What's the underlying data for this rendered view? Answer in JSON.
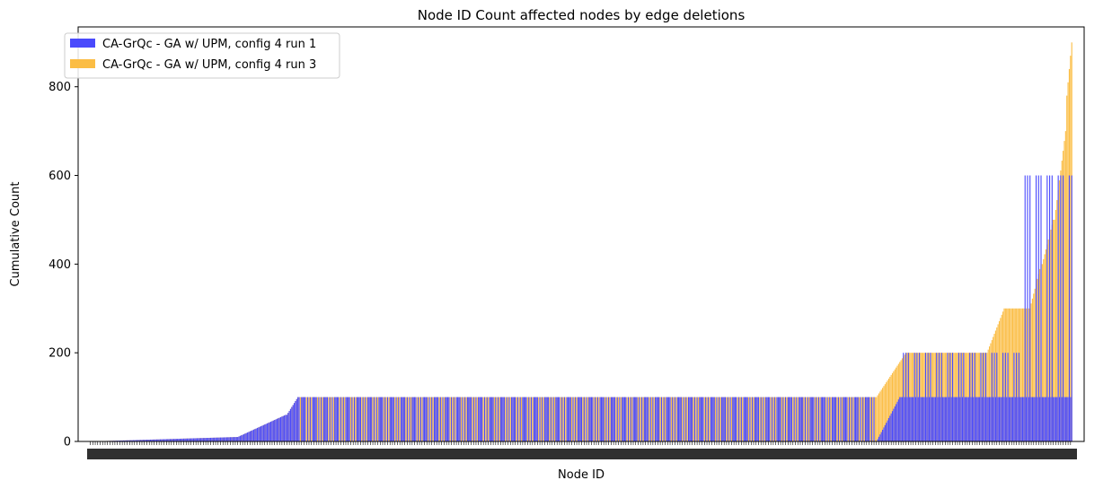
{
  "chart_data": {
    "type": "bar",
    "title": "Node ID Count affected nodes by edge deletions",
    "xlabel": "Node ID",
    "ylabel": "Cumulative Count",
    "ylim": [
      0,
      935
    ],
    "yticks": [
      0,
      200,
      400,
      600,
      800
    ],
    "grid": false,
    "legend_position": "top-left",
    "bar_count": 800,
    "series": [
      {
        "name": "CA-GrQc - GA w/ UPM, config 4 run 1",
        "color": "#4a4afc",
        "stack_order": 1,
        "segments": [
          {
            "from": 0,
            "to": 120,
            "values": [
              0,
              10
            ],
            "pattern": "ramp"
          },
          {
            "from": 120,
            "to": 160,
            "values": [
              10,
              60
            ],
            "pattern": "ramp"
          },
          {
            "from": 160,
            "to": 170,
            "values": [
              60,
              100
            ],
            "pattern": "ramp"
          },
          {
            "from": 170,
            "to": 640,
            "values": [
              100,
              0
            ],
            "pattern": "alternate"
          },
          {
            "from": 640,
            "to": 660,
            "values": [
              0,
              100
            ],
            "pattern": "ramp"
          },
          {
            "from": 660,
            "to": 760,
            "values": [
              100,
              200
            ],
            "pattern": "alternate"
          },
          {
            "from": 760,
            "to": 800,
            "values": [
              100,
              600
            ],
            "pattern": "alternate"
          }
        ]
      },
      {
        "name": "CA-GrQc - GA w/ UPM, config 4 run 3",
        "color": "#fbbd44",
        "stack_order": 0,
        "segments": [
          {
            "from": 0,
            "to": 120,
            "values": [
              0,
              10
            ],
            "pattern": "ramp"
          },
          {
            "from": 120,
            "to": 160,
            "values": [
              10,
              60
            ],
            "pattern": "ramp"
          },
          {
            "from": 160,
            "to": 170,
            "values": [
              60,
              100
            ],
            "pattern": "ramp"
          },
          {
            "from": 170,
            "to": 640,
            "values": [
              100,
              100
            ],
            "pattern": "flat"
          },
          {
            "from": 640,
            "to": 665,
            "values": [
              100,
              200
            ],
            "pattern": "ramp"
          },
          {
            "from": 665,
            "to": 730,
            "values": [
              200,
              200
            ],
            "pattern": "flat"
          },
          {
            "from": 730,
            "to": 745,
            "values": [
              200,
              300
            ],
            "pattern": "ramp"
          },
          {
            "from": 745,
            "to": 765,
            "values": [
              300,
              300
            ],
            "pattern": "flat"
          },
          {
            "from": 765,
            "to": 775,
            "values": [
              300,
              400
            ],
            "pattern": "ramp"
          },
          {
            "from": 775,
            "to": 785,
            "values": [
              400,
              500
            ],
            "pattern": "ramp"
          },
          {
            "from": 785,
            "to": 795,
            "values": [
              500,
              700
            ],
            "pattern": "ramp"
          },
          {
            "from": 795,
            "to": 800,
            "values": [
              780,
              900
            ],
            "pattern": "ramp"
          }
        ]
      }
    ]
  }
}
